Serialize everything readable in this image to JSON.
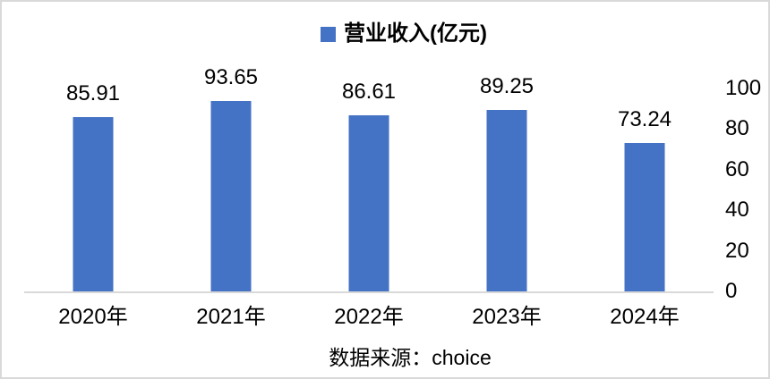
{
  "chart_data": {
    "type": "bar",
    "title": "",
    "legend_entries": [
      "营业收入(亿元)"
    ],
    "legend_position": "top",
    "categories": [
      "2020年",
      "2021年",
      "2022年",
      "2023年",
      "2024年"
    ],
    "series": [
      {
        "name": "营业收入(亿元)",
        "values": [
          85.91,
          93.65,
          86.61,
          89.25,
          73.24
        ],
        "value_labels": [
          "85.91",
          "93.65",
          "86.61",
          "89.25",
          "73.24"
        ],
        "color": "#4472C4"
      }
    ],
    "ylabel": "",
    "xlabel": "",
    "ylim": [
      0,
      100
    ],
    "yticks": [
      0,
      20,
      40,
      60,
      80,
      100
    ],
    "yaxis_position": "right",
    "grid": false,
    "data_labels": "outside-end"
  },
  "legend": {
    "label": "营业收入(亿元)",
    "marker_color": "#4472C4"
  },
  "source_note": "数据来源：choice",
  "colors": {
    "bar": "#4472C4",
    "axis_line": "#d9d9d9",
    "text": "#000000",
    "background": "#ffffff"
  }
}
